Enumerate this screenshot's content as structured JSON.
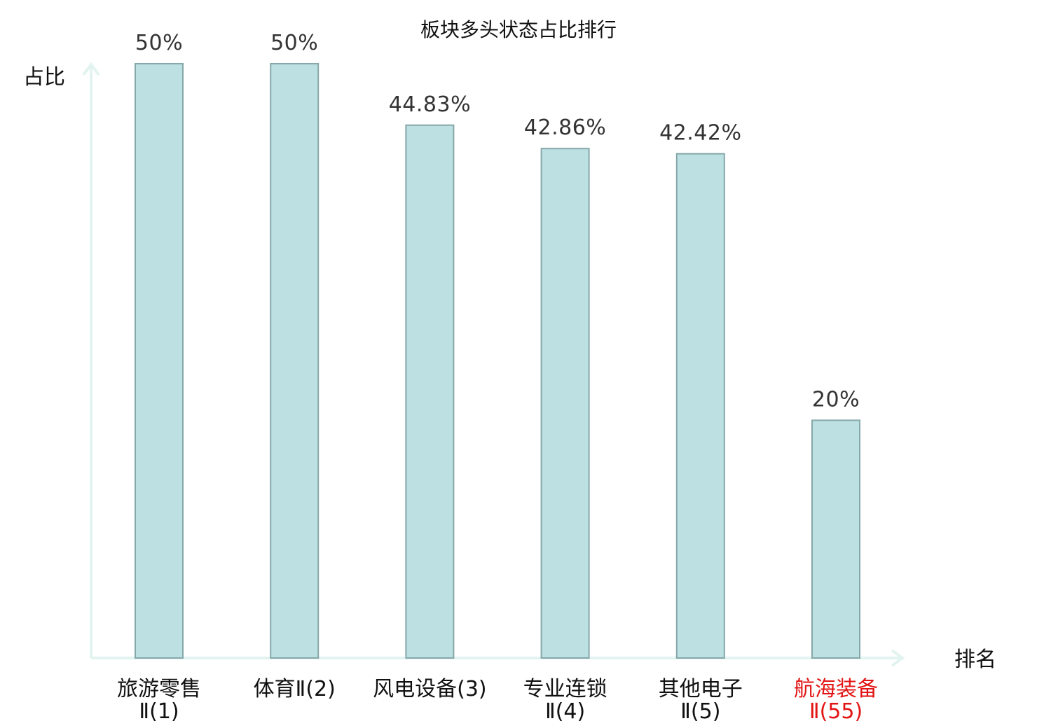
{
  "chart_data": {
    "type": "bar",
    "title": "板块多头状态占比排行",
    "ylabel": "占比",
    "xlabel": "排名",
    "ylim": [
      0,
      50
    ],
    "grid": false,
    "categories": [
      {
        "lines": [
          "旅游零售",
          "Ⅱ(1)"
        ],
        "highlight": false
      },
      {
        "lines": [
          "体育Ⅱ(2)"
        ],
        "highlight": false
      },
      {
        "lines": [
          "风电设备(3)"
        ],
        "highlight": false
      },
      {
        "lines": [
          "专业连锁",
          "Ⅱ(4)"
        ],
        "highlight": false
      },
      {
        "lines": [
          "其他电子",
          "Ⅱ(5)"
        ],
        "highlight": false
      },
      {
        "lines": [
          "航海装备",
          "Ⅱ(55)"
        ],
        "highlight": true
      }
    ],
    "values": [
      50,
      50,
      44.83,
      42.86,
      42.42,
      20
    ],
    "value_labels": [
      "50%",
      "50%",
      "44.83%",
      "42.86%",
      "42.42%",
      "20%"
    ],
    "colors": {
      "bar_fill": "#bde0e3",
      "bar_stroke": "#86a8aa",
      "axis": "#e2f3f0",
      "highlight_label": "#e31414"
    }
  }
}
